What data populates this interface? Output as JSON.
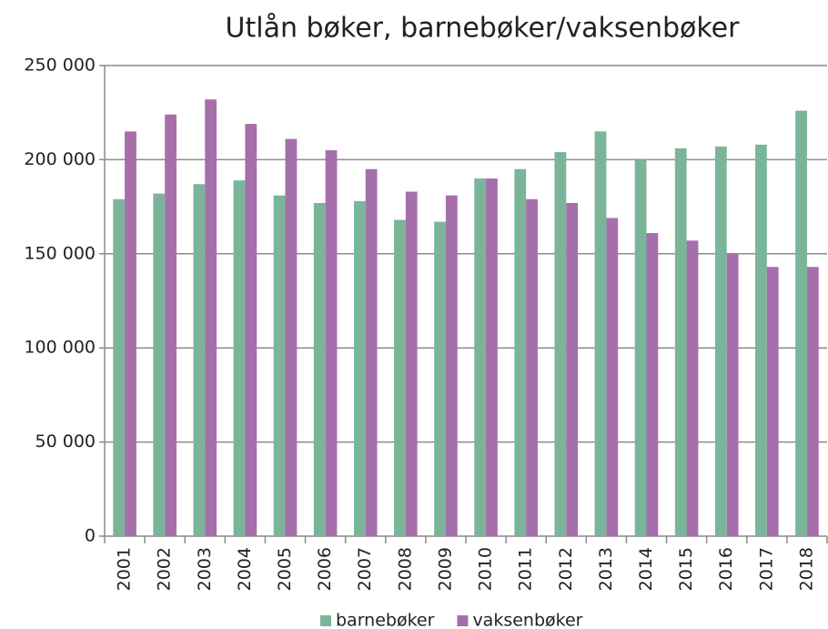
{
  "chart_data": {
    "type": "bar",
    "title": "Utlån bøker, barnebøker/vaksenbøker",
    "categories": [
      "2001",
      "2002",
      "2003",
      "2004",
      "2005",
      "2006",
      "2007",
      "2008",
      "2009",
      "2010",
      "2011",
      "2012",
      "2013",
      "2014",
      "2015",
      "2016",
      "2017",
      "2018"
    ],
    "series": [
      {
        "name": "barnebøker",
        "color": "#7ab59a",
        "values": [
          179000,
          182000,
          187000,
          189000,
          181000,
          177000,
          178000,
          168000,
          167000,
          190000,
          195000,
          204000,
          215000,
          200000,
          206000,
          207000,
          208000,
          226000
        ]
      },
      {
        "name": "vaksenbøker",
        "color": "#a66fac",
        "values": [
          215000,
          224000,
          232000,
          219000,
          211000,
          205000,
          195000,
          183000,
          181000,
          190000,
          179000,
          177000,
          169000,
          161000,
          157000,
          150000,
          143000,
          143000
        ]
      }
    ],
    "ylim": [
      0,
      250000
    ],
    "yticks": [
      0,
      {
        "value": 50000,
        "label": "50 000"
      },
      {
        "value": 100000,
        "label": "100 000"
      },
      {
        "value": 150000,
        "label": "150 000"
      },
      {
        "value": 200000,
        "label": "200 000"
      },
      {
        "value": 250000,
        "label": "250 000"
      }
    ],
    "grid": true,
    "legend": "bottom"
  }
}
